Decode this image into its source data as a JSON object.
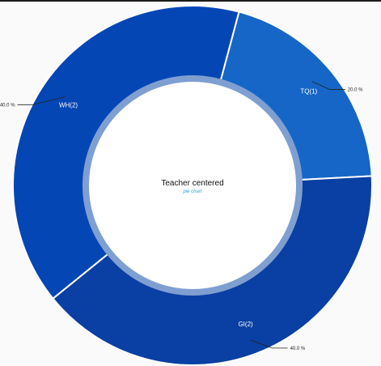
{
  "chart_data": {
    "type": "pie",
    "variant": "donut",
    "title": "Teacher centered",
    "subtitle": "pie chart",
    "slices": [
      {
        "label": "TQ(1)",
        "value": 1,
        "percent_label": "20.0 %",
        "color": "#1566c6"
      },
      {
        "label": "GI(2)",
        "value": 2,
        "percent_label": "40.0 %",
        "color": "#0a3fa3"
      },
      {
        "label": "WH(2)",
        "value": 2,
        "percent_label": "40.0 %",
        "color": "#0546b5"
      }
    ],
    "inner_ring_color": "#7f9fd1",
    "center_color": "#ffffff"
  }
}
